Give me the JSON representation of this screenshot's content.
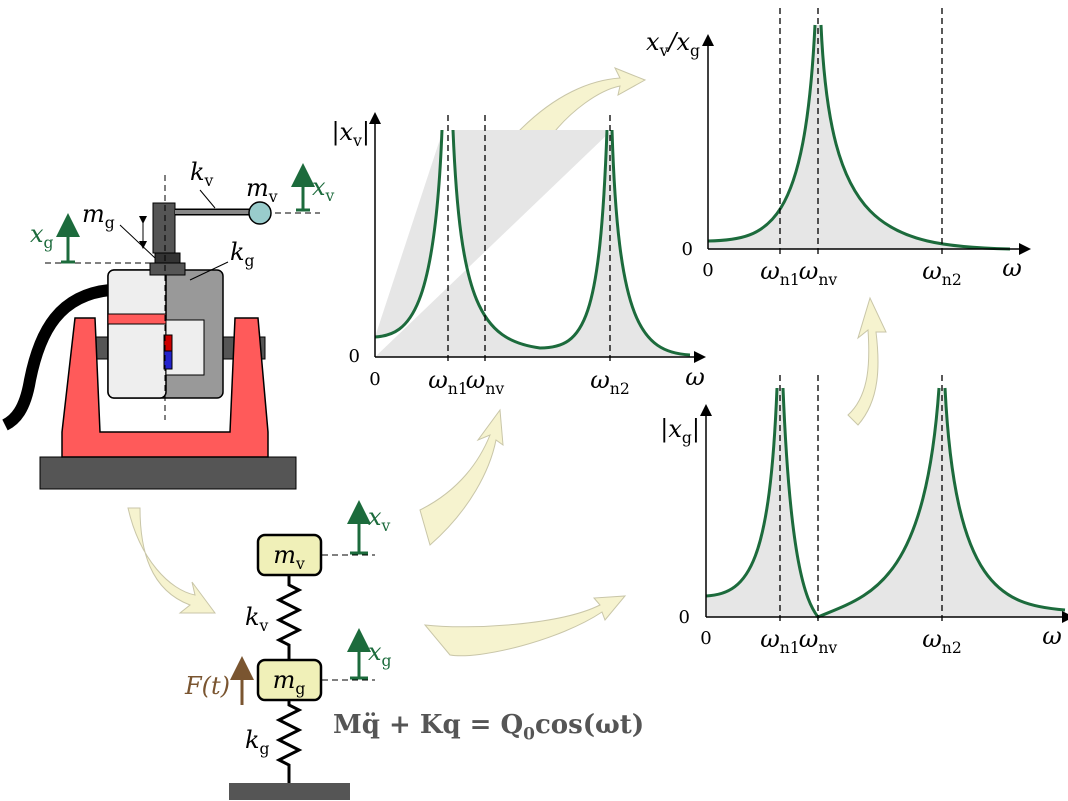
{
  "device": {
    "kv": [
      {
        "t": "k"
      },
      {
        "t": "v",
        "sub": true
      }
    ],
    "mv": [
      {
        "t": "m"
      },
      {
        "t": "v",
        "sub": true
      }
    ],
    "xv": [
      {
        "t": "x"
      },
      {
        "t": "v",
        "sub": true
      }
    ],
    "mg": [
      {
        "t": "m"
      },
      {
        "t": "g",
        "sub": true
      }
    ],
    "kg": [
      {
        "t": "k"
      },
      {
        "t": "g",
        "sub": true
      }
    ],
    "xg": [
      {
        "t": "x"
      },
      {
        "t": "g",
        "sub": true
      }
    ]
  },
  "model": {
    "mv": [
      {
        "t": "m"
      },
      {
        "t": "v",
        "sub": true
      }
    ],
    "kv": [
      {
        "t": "k"
      },
      {
        "t": "v",
        "sub": true
      }
    ],
    "xv": [
      {
        "t": "x"
      },
      {
        "t": "v",
        "sub": true
      }
    ],
    "mg": [
      {
        "t": "m"
      },
      {
        "t": "g",
        "sub": true
      }
    ],
    "kg": [
      {
        "t": "k"
      },
      {
        "t": "g",
        "sub": true
      }
    ],
    "xg": [
      {
        "t": "x"
      },
      {
        "t": "g",
        "sub": true
      }
    ],
    "force": [
      {
        "t": "F(t)"
      }
    ],
    "equation": [
      {
        "t": "Mq̈ + Kq = Q"
      },
      {
        "t": "0",
        "sub": true
      },
      {
        "t": "cos(ωt)"
      }
    ]
  },
  "plots": [
    {
      "ylabel": [
        {
          "t": "|x"
        },
        {
          "t": "v",
          "sub": true
        },
        {
          "t": "|"
        }
      ],
      "yzero": [
        {
          "t": "0"
        }
      ],
      "xzero": [
        {
          "t": "0"
        }
      ],
      "xticks": [
        [
          {
            "t": "ω"
          },
          {
            "t": "n1",
            "sub": true
          }
        ],
        [
          {
            "t": "ω"
          },
          {
            "t": "nv",
            "sub": true
          }
        ],
        [
          {
            "t": "ω"
          },
          {
            "t": "n2",
            "sub": true
          }
        ]
      ],
      "xlabel": [
        {
          "t": "ω"
        }
      ]
    },
    {
      "ylabel": [
        {
          "t": "x"
        },
        {
          "t": "v",
          "sub": true
        },
        {
          "t": "/x"
        },
        {
          "t": "g",
          "sub": true
        }
      ],
      "yzero": [
        {
          "t": "0"
        }
      ],
      "xzero": [
        {
          "t": "0"
        }
      ],
      "xticks": [
        [
          {
            "t": "ω"
          },
          {
            "t": "n1",
            "sub": true
          }
        ],
        [
          {
            "t": "ω"
          },
          {
            "t": "nv",
            "sub": true
          }
        ],
        [
          {
            "t": "ω"
          },
          {
            "t": "n2",
            "sub": true
          }
        ]
      ],
      "xlabel": [
        {
          "t": "ω"
        }
      ]
    },
    {
      "ylabel": [
        {
          "t": "|x"
        },
        {
          "t": "g",
          "sub": true
        },
        {
          "t": "|"
        }
      ],
      "yzero": [
        {
          "t": "0"
        }
      ],
      "xzero": [
        {
          "t": "0"
        }
      ],
      "xticks": [
        [
          {
            "t": "ω"
          },
          {
            "t": "n1",
            "sub": true
          }
        ],
        [
          {
            "t": "ω"
          },
          {
            "t": "nv",
            "sub": true
          }
        ],
        [
          {
            "t": "ω"
          },
          {
            "t": "n2",
            "sub": true
          }
        ]
      ],
      "xlabel": [
        {
          "t": "ω"
        }
      ]
    }
  ]
}
